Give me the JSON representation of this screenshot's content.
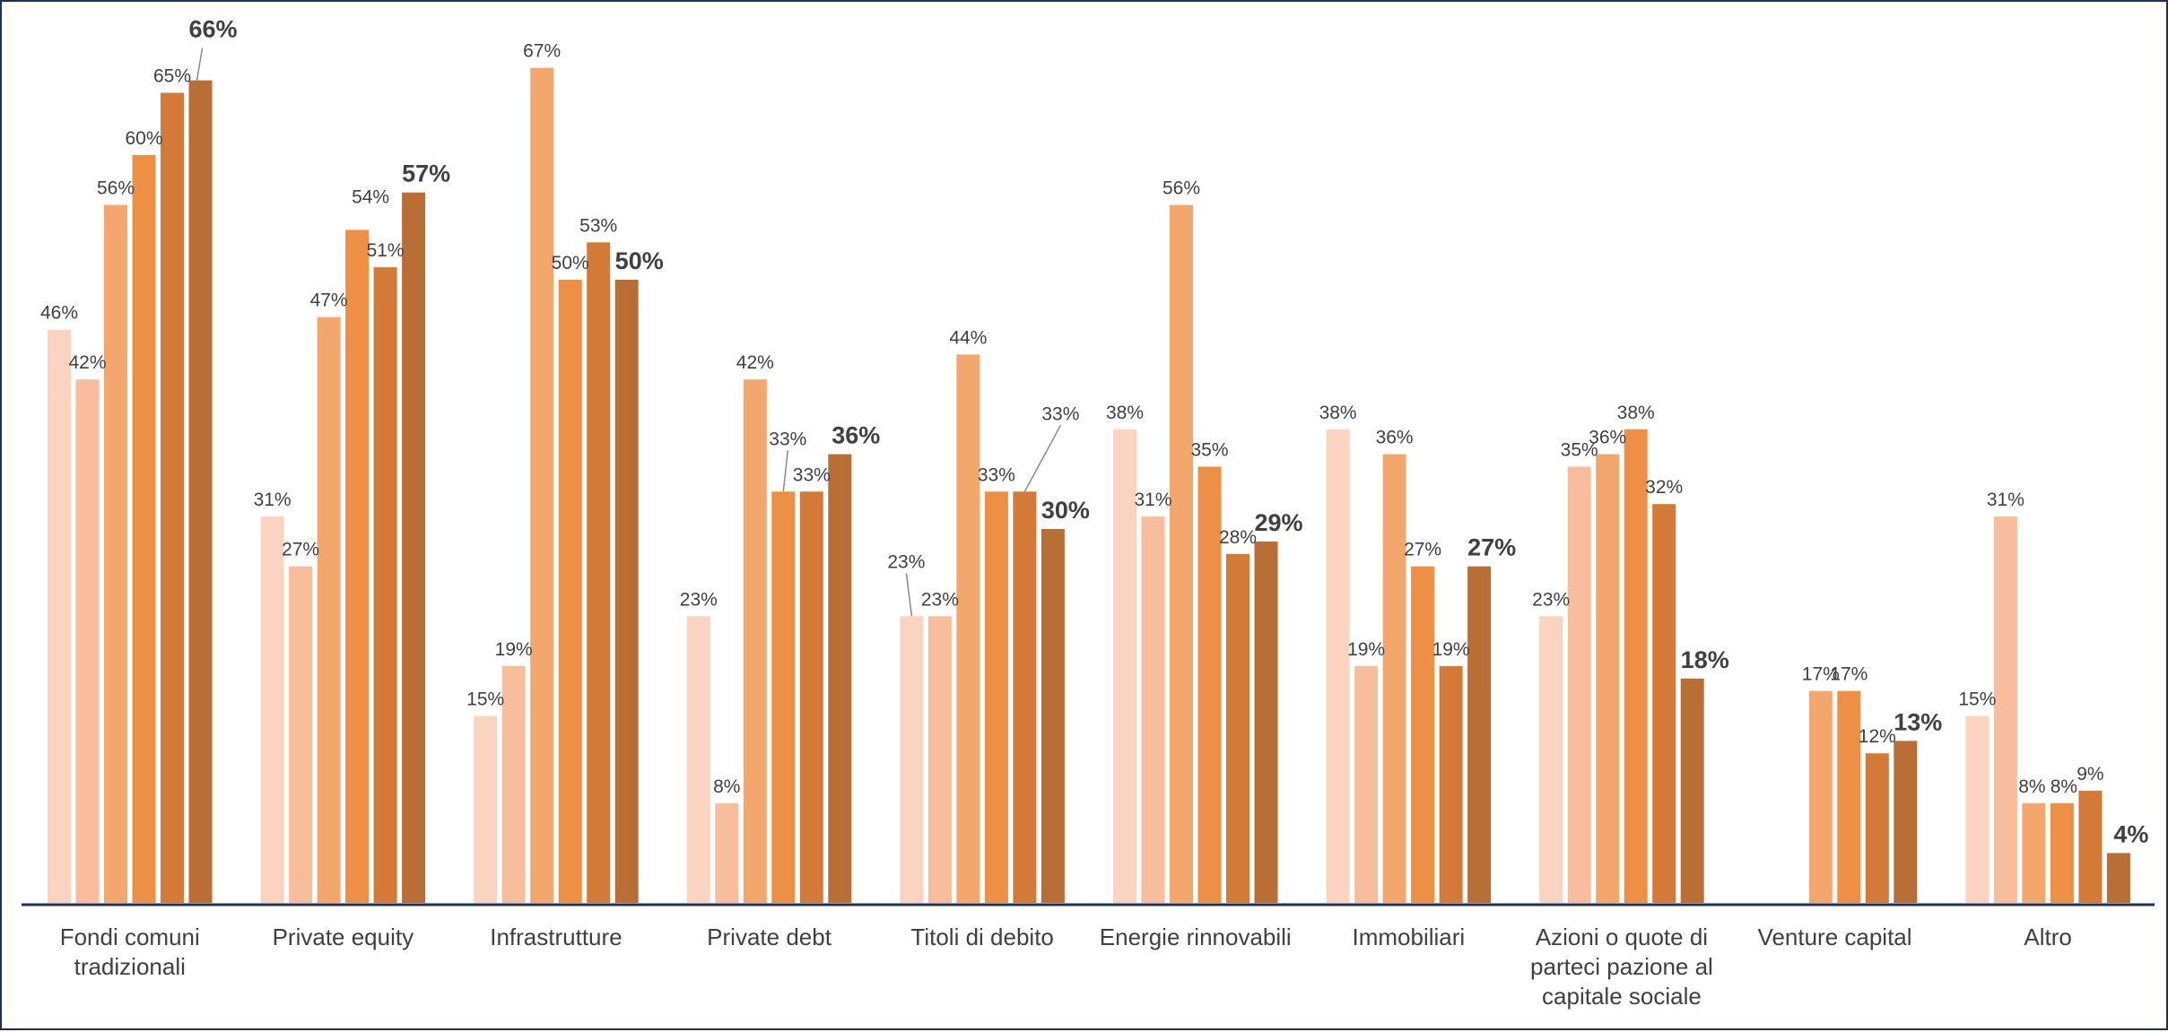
{
  "chart_data": {
    "type": "bar",
    "title": "",
    "xlabel": "",
    "ylabel": "",
    "ylim": [
      0,
      70
    ],
    "grid": false,
    "legend": "none",
    "colors": [
      "#fad4c0",
      "#f8bd9d",
      "#f4a76d",
      "#ed8f44",
      "#d37a38",
      "#b86e34"
    ],
    "categories": [
      "Fondi comuni tradizionali",
      "Private equity",
      "Infrastrutture",
      "Private debt",
      "Titoli di debito",
      "Energie rinnovabili",
      "Immobiliari",
      "Azioni o quote di parteci pazione al capitale sociale",
      "Venture capital",
      "Altro"
    ],
    "category_lines": [
      [
        "Fondi comuni",
        "tradizionali"
      ],
      [
        "Private equity"
      ],
      [
        "Infrastrutture"
      ],
      [
        "Private debt"
      ],
      [
        "Titoli di debito"
      ],
      [
        "Energie rinnovabili"
      ],
      [
        "Immobiliari"
      ],
      [
        "Azioni o quote di",
        "parteci pazione al",
        "capitale sociale"
      ],
      [
        "Venture capital"
      ],
      [
        "Altro"
      ]
    ],
    "series": [
      {
        "values": [
          46,
          31,
          15,
          23,
          23,
          38,
          38,
          23,
          null,
          15
        ],
        "labels": [
          "46%",
          "31%",
          "15%",
          "23%",
          "23%",
          "38%",
          "38%",
          "23%",
          "",
          "15%"
        ]
      },
      {
        "values": [
          42,
          27,
          19,
          8,
          23,
          31,
          19,
          35,
          null,
          31
        ],
        "labels": [
          "42%",
          "27%",
          "19%",
          "8%",
          "23%",
          "31%",
          "19%",
          "35%",
          "",
          "31%"
        ]
      },
      {
        "values": [
          56,
          47,
          67,
          42,
          44,
          56,
          36,
          36,
          17,
          8
        ],
        "labels": [
          "56%",
          "47%",
          "67%",
          "42%",
          "44%",
          "56%",
          "36%",
          "36%",
          "17%",
          "8%"
        ]
      },
      {
        "values": [
          60,
          54,
          50,
          33,
          33,
          35,
          27,
          38,
          17,
          8
        ],
        "labels": [
          "60%",
          "54%",
          "50%",
          "33%",
          "33%",
          "35%",
          "27%",
          "38%",
          "17%",
          "8%"
        ]
      },
      {
        "values": [
          65,
          51,
          53,
          33,
          33,
          28,
          19,
          32,
          12,
          9
        ],
        "labels": [
          "65%",
          "51%",
          "53%",
          "33%",
          "33%",
          "28%",
          "19%",
          "32%",
          "12%",
          "9%"
        ]
      },
      {
        "values": [
          66,
          57,
          50,
          36,
          30,
          29,
          27,
          18,
          13,
          4
        ],
        "labels": [
          "66%",
          "57%",
          "50%",
          "36%",
          "30%",
          "29%",
          "27%",
          "18%",
          "13%",
          "4%"
        ]
      }
    ]
  }
}
